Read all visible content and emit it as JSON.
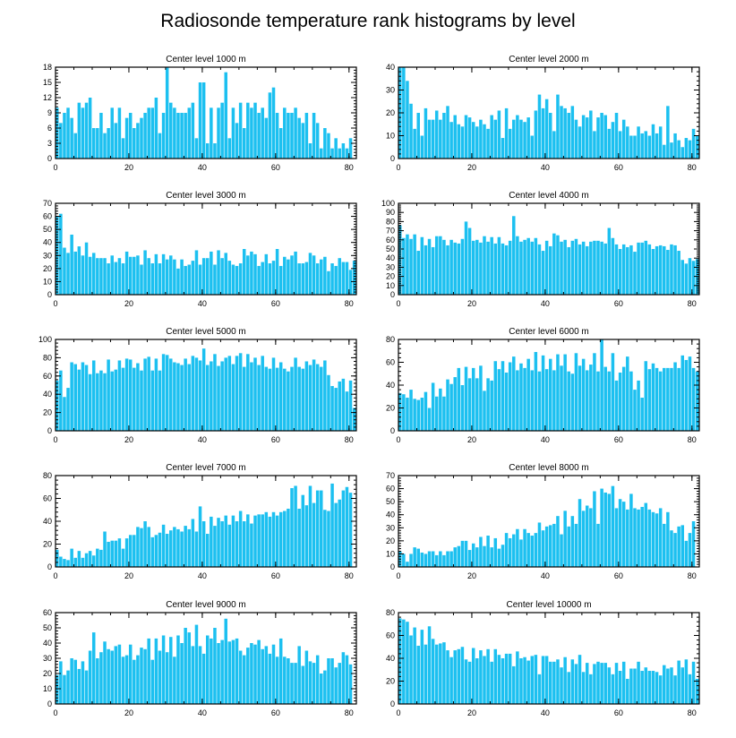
{
  "title": "Radiosonde temperature rank histograms by level",
  "colors": {
    "bar": "#1cc0f0",
    "bar_edge": "#ffffff",
    "axis": "#000000"
  },
  "chart_data": [
    {
      "type": "bar",
      "title": "Center level 1000 m",
      "xlim": [
        0,
        82
      ],
      "ylim": [
        0,
        18
      ],
      "xticks": [
        0,
        20,
        40,
        60,
        80
      ],
      "yticks": [
        0,
        3,
        6,
        9,
        12,
        15,
        18
      ],
      "values": [
        10,
        7,
        9,
        10,
        8,
        5,
        11,
        10,
        11,
        12,
        6,
        6,
        9,
        5,
        6,
        10,
        7,
        10,
        4,
        8,
        9,
        6,
        7,
        8,
        9,
        10,
        10,
        12,
        5,
        9,
        18,
        11,
        10,
        9,
        9,
        9,
        10,
        11,
        4,
        15,
        15,
        3,
        10,
        3,
        10,
        11,
        17,
        4,
        10,
        7,
        11,
        6,
        11,
        10,
        11,
        9,
        10,
        8,
        13,
        14,
        9,
        6,
        10,
        9,
        9,
        10,
        8,
        7,
        9,
        3,
        9,
        7,
        2,
        6,
        5,
        2,
        4,
        2,
        3,
        2,
        4
      ]
    },
    {
      "type": "bar",
      "title": "Center level 2000 m",
      "xlim": [
        0,
        82
      ],
      "ylim": [
        0,
        40
      ],
      "xticks": [
        0,
        20,
        40,
        60,
        80
      ],
      "yticks": [
        0,
        10,
        20,
        30,
        40
      ],
      "values": [
        40,
        40,
        34,
        24,
        13,
        20,
        10,
        22,
        17,
        17,
        21,
        17,
        20,
        23,
        16,
        19,
        15,
        14,
        19,
        18,
        16,
        14,
        17,
        15,
        13,
        19,
        17,
        21,
        9,
        22,
        13,
        17,
        19,
        17,
        16,
        18,
        10,
        21,
        28,
        22,
        26,
        20,
        12,
        28,
        23,
        22,
        20,
        23,
        17,
        14,
        19,
        18,
        21,
        12,
        18,
        20,
        19,
        13,
        16,
        20,
        12,
        17,
        14,
        10,
        10,
        14,
        11,
        12,
        10,
        15,
        11,
        14,
        6,
        23,
        7,
        11,
        8,
        5,
        9,
        8,
        13,
        10,
        7,
        10
      ]
    },
    {
      "type": "bar",
      "title": "Center level 3000 m",
      "xlim": [
        0,
        82
      ],
      "ylim": [
        0,
        70
      ],
      "xticks": [
        0,
        20,
        40,
        60,
        80
      ],
      "yticks": [
        0,
        10,
        20,
        30,
        40,
        50,
        60,
        70
      ],
      "values": [
        60,
        62,
        36,
        32,
        46,
        33,
        37,
        30,
        40,
        29,
        32,
        28,
        28,
        28,
        24,
        30,
        25,
        28,
        24,
        33,
        29,
        29,
        30,
        23,
        34,
        28,
        24,
        31,
        24,
        31,
        27,
        30,
        27,
        20,
        27,
        22,
        23,
        26,
        34,
        23,
        28,
        28,
        33,
        23,
        34,
        28,
        32,
        26,
        23,
        22,
        24,
        35,
        30,
        33,
        31,
        22,
        25,
        31,
        24,
        26,
        35,
        22,
        29,
        27,
        30,
        33,
        24,
        24,
        25,
        32,
        30,
        24,
        27,
        29,
        18,
        24,
        22,
        28,
        25,
        25,
        19,
        26,
        21,
        24
      ]
    },
    {
      "type": "bar",
      "title": "Center level 4000 m",
      "xlim": [
        0,
        82
      ],
      "ylim": [
        0,
        100
      ],
      "xticks": [
        0,
        20,
        40,
        60,
        80
      ],
      "yticks": [
        0,
        10,
        20,
        30,
        40,
        50,
        60,
        70,
        80,
        90,
        100
      ],
      "values": [
        76,
        62,
        66,
        61,
        66,
        48,
        63,
        54,
        61,
        52,
        64,
        64,
        60,
        54,
        60,
        57,
        56,
        61,
        80,
        73,
        59,
        60,
        57,
        64,
        58,
        63,
        56,
        63,
        56,
        54,
        59,
        86,
        64,
        58,
        60,
        62,
        58,
        62,
        55,
        48,
        59,
        53,
        67,
        65,
        58,
        60,
        52,
        59,
        61,
        55,
        58,
        53,
        58,
        59,
        59,
        58,
        56,
        73,
        62,
        55,
        50,
        55,
        52,
        54,
        47,
        57,
        57,
        59,
        55,
        50,
        53,
        54,
        53,
        49,
        55,
        54,
        48,
        38,
        34,
        40,
        37,
        39,
        45
      ]
    },
    {
      "type": "bar",
      "title": "Center level 5000 m",
      "xlim": [
        0,
        82
      ],
      "ylim": [
        0,
        100
      ],
      "xticks": [
        0,
        20,
        40,
        60,
        80
      ],
      "yticks": [
        0,
        20,
        40,
        60,
        80,
        100
      ],
      "values": [
        55,
        66,
        37,
        47,
        75,
        73,
        67,
        75,
        72,
        62,
        77,
        63,
        66,
        63,
        78,
        65,
        67,
        77,
        69,
        79,
        78,
        69,
        74,
        66,
        79,
        81,
        66,
        79,
        66,
        84,
        83,
        79,
        75,
        74,
        72,
        79,
        73,
        82,
        80,
        77,
        90,
        72,
        76,
        84,
        71,
        76,
        80,
        82,
        73,
        82,
        85,
        70,
        84,
        75,
        80,
        72,
        82,
        70,
        68,
        80,
        69,
        75,
        68,
        65,
        70,
        80,
        70,
        68,
        76,
        72,
        78,
        73,
        70,
        77,
        61,
        49,
        47,
        54,
        57,
        43,
        55,
        25
      ]
    },
    {
      "type": "bar",
      "title": "Center level 6000 m",
      "xlim": [
        0,
        82
      ],
      "ylim": [
        0,
        80
      ],
      "xticks": [
        0,
        20,
        40,
        60,
        80
      ],
      "yticks": [
        0,
        20,
        40,
        60,
        80
      ],
      "values": [
        33,
        32,
        29,
        36,
        28,
        27,
        29,
        34,
        20,
        42,
        30,
        37,
        30,
        45,
        41,
        47,
        55,
        40,
        56,
        46,
        55,
        46,
        57,
        35,
        46,
        44,
        61,
        54,
        61,
        51,
        60,
        65,
        53,
        59,
        55,
        63,
        53,
        69,
        52,
        66,
        54,
        63,
        53,
        67,
        57,
        67,
        52,
        50,
        68,
        57,
        63,
        53,
        58,
        68,
        52,
        81,
        56,
        52,
        68,
        44,
        51,
        56,
        65,
        52,
        36,
        44,
        29,
        61,
        54,
        59,
        55,
        52,
        55,
        55,
        55,
        60,
        55,
        66,
        62,
        65,
        55,
        52
      ]
    },
    {
      "type": "bar",
      "title": "Center level 7000 m",
      "xlim": [
        0,
        82
      ],
      "ylim": [
        0,
        80
      ],
      "xticks": [
        0,
        20,
        40,
        60,
        80
      ],
      "yticks": [
        0,
        20,
        40,
        60,
        80
      ],
      "values": [
        15,
        9,
        7,
        6,
        16,
        8,
        14,
        8,
        12,
        14,
        10,
        16,
        15,
        31,
        22,
        23,
        23,
        25,
        16,
        25,
        28,
        28,
        35,
        34,
        40,
        35,
        26,
        28,
        30,
        37,
        29,
        32,
        35,
        33,
        31,
        36,
        33,
        42,
        31,
        53,
        40,
        29,
        44,
        36,
        43,
        40,
        45,
        37,
        45,
        40,
        49,
        40,
        46,
        38,
        45,
        46,
        46,
        48,
        44,
        48,
        45,
        48,
        49,
        51,
        69,
        71,
        51,
        63,
        54,
        71,
        56,
        67,
        67,
        50,
        49,
        73,
        56,
        59,
        67,
        70,
        65
      ]
    },
    {
      "type": "bar",
      "title": "Center level 8000 m",
      "xlim": [
        0,
        82
      ],
      "ylim": [
        0,
        70
      ],
      "xticks": [
        0,
        20,
        40,
        60,
        80
      ],
      "yticks": [
        0,
        10,
        20,
        30,
        40,
        50,
        60,
        70
      ],
      "values": [
        12,
        10,
        4,
        10,
        15,
        14,
        11,
        10,
        12,
        12,
        9,
        12,
        9,
        12,
        12,
        15,
        16,
        20,
        20,
        13,
        18,
        15,
        23,
        16,
        24,
        15,
        22,
        14,
        17,
        26,
        22,
        25,
        29,
        21,
        29,
        26,
        24,
        26,
        34,
        28,
        31,
        32,
        33,
        39,
        25,
        43,
        31,
        39,
        33,
        52,
        43,
        47,
        45,
        58,
        33,
        60,
        57,
        56,
        62,
        45,
        52,
        50,
        44,
        56,
        45,
        44,
        46,
        49,
        44,
        42,
        41,
        45,
        33,
        42,
        28,
        26,
        31,
        32,
        20,
        26,
        35
      ]
    },
    {
      "type": "bar",
      "title": "Center level 9000 m",
      "xlim": [
        0,
        82
      ],
      "ylim": [
        0,
        60
      ],
      "xticks": [
        0,
        20,
        40,
        60,
        80
      ],
      "yticks": [
        0,
        10,
        20,
        30,
        40,
        50,
        60
      ],
      "values": [
        19,
        28,
        19,
        22,
        30,
        29,
        23,
        28,
        22,
        35,
        47,
        30,
        34,
        41,
        36,
        35,
        38,
        39,
        31,
        32,
        39,
        29,
        32,
        37,
        36,
        43,
        29,
        43,
        35,
        45,
        34,
        44,
        31,
        45,
        40,
        50,
        47,
        38,
        52,
        38,
        33,
        45,
        43,
        50,
        40,
        42,
        56,
        41,
        42,
        43,
        35,
        32,
        37,
        40,
        39,
        42,
        36,
        38,
        33,
        39,
        31,
        43,
        31,
        30,
        27,
        27,
        38,
        25,
        35,
        28,
        27,
        32,
        20,
        22,
        30,
        30,
        24,
        27,
        34,
        32,
        26
      ]
    },
    {
      "type": "bar",
      "title": "Center level 10000 m",
      "xlim": [
        0,
        82
      ],
      "ylim": [
        0,
        80
      ],
      "xticks": [
        0,
        20,
        40,
        60,
        80
      ],
      "yticks": [
        0,
        20,
        40,
        60,
        80
      ],
      "values": [
        75,
        74,
        72,
        60,
        67,
        51,
        65,
        52,
        68,
        57,
        52,
        53,
        54,
        47,
        41,
        47,
        48,
        50,
        39,
        37,
        49,
        40,
        47,
        42,
        48,
        37,
        48,
        43,
        40,
        44,
        44,
        33,
        46,
        40,
        41,
        38,
        42,
        43,
        26,
        42,
        42,
        37,
        37,
        39,
        32,
        41,
        28,
        39,
        35,
        43,
        28,
        36,
        26,
        35,
        37,
        36,
        36,
        32,
        26,
        36,
        29,
        37,
        22,
        31,
        31,
        37,
        29,
        32,
        29,
        29,
        28,
        25,
        34,
        31,
        32,
        25,
        38,
        32,
        39,
        26,
        37,
        22
      ]
    }
  ]
}
